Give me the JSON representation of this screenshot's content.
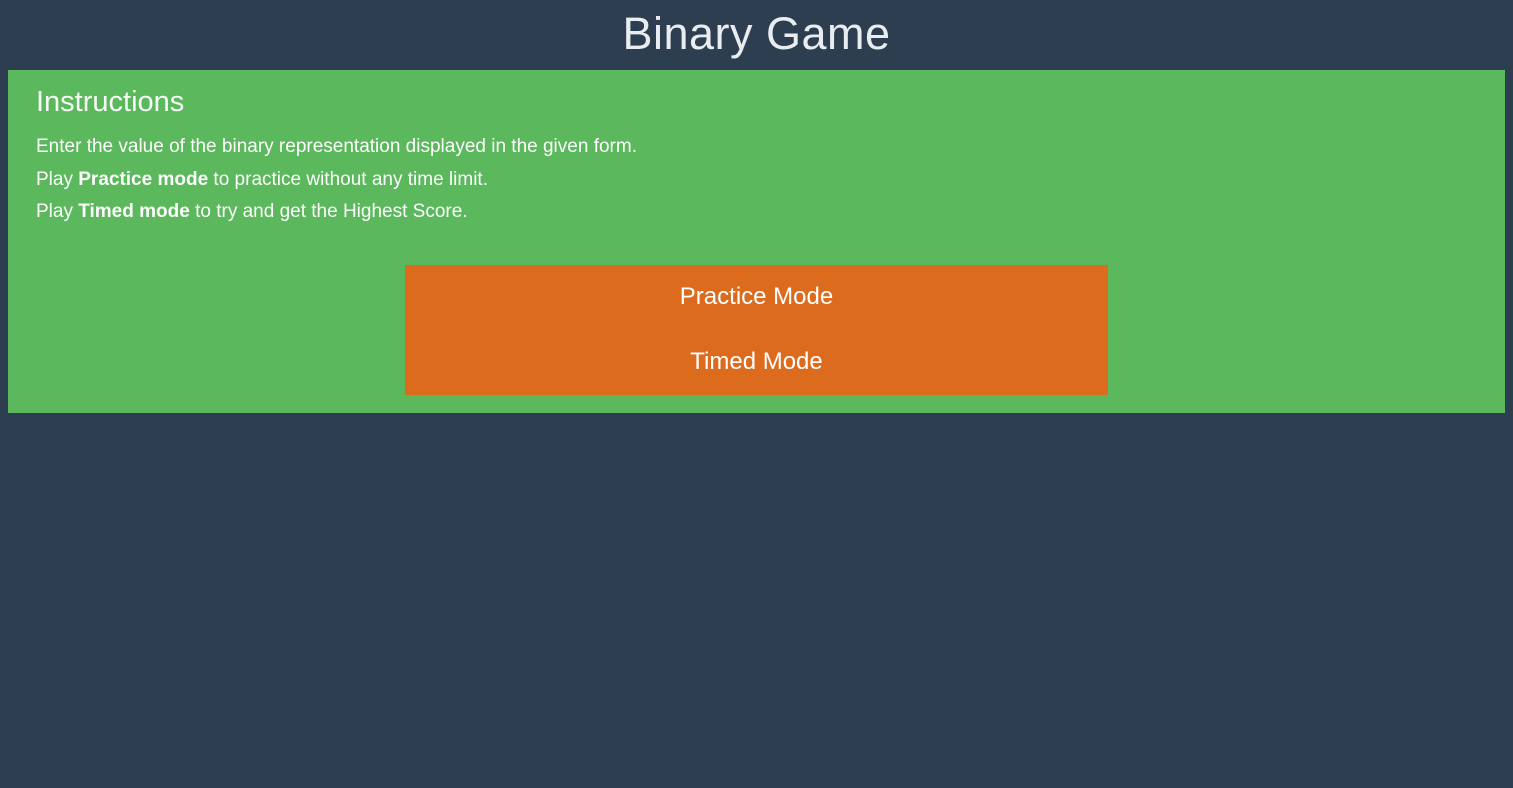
{
  "header": {
    "title": "Binary Game"
  },
  "instructions": {
    "heading": "Instructions",
    "lines": [
      {
        "prefix": "Enter the value of the binary representation displayed in the given form.",
        "bold": "",
        "suffix": ""
      },
      {
        "prefix": "Play ",
        "bold": "Practice mode",
        "suffix": " to practice without any time limit."
      },
      {
        "prefix": "Play ",
        "bold": "Timed mode",
        "suffix": " to try and get the Highest Score."
      }
    ]
  },
  "buttons": {
    "practice_label": "Practice Mode",
    "timed_label": "Timed Mode"
  },
  "colors": {
    "page_background": "#2C3E50",
    "panel_green": "#5BB85C",
    "button_orange": "#DC6B1E",
    "title_text": "#E9EDF0",
    "body_text": "#FFFFFF"
  }
}
